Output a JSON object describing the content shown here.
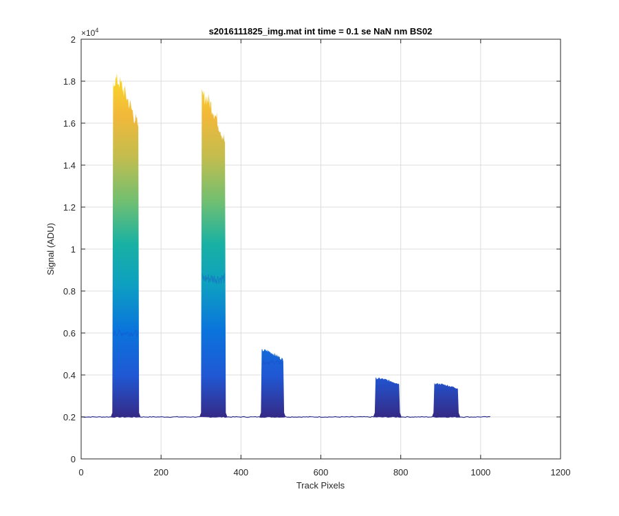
{
  "chart_data": {
    "type": "area",
    "title": "s2016111825_img.mat int time = 0.1 se  NaN nm BS02",
    "xlabel": "Track Pixels",
    "ylabel": "Signal (ADU)",
    "xlim": [
      0,
      1200
    ],
    "ylim": [
      0,
      20000
    ],
    "y_exponent_label": "×10",
    "y_exponent_power": "4",
    "xticks": [
      0,
      200,
      400,
      600,
      800,
      1000,
      1200
    ],
    "xtick_labels": [
      "0",
      "200",
      "400",
      "600",
      "800",
      "1000",
      "1200"
    ],
    "yticks": [
      0,
      2000,
      4000,
      6000,
      8000,
      10000,
      12000,
      14000,
      16000,
      18000,
      20000
    ],
    "ytick_labels": [
      "0",
      "0.2",
      "0.4",
      "0.6",
      "0.8",
      "1",
      "1.2",
      "1.4",
      "1.6",
      "1.8",
      "2"
    ],
    "grid": true,
    "colormap": "parula",
    "baseline": 2000,
    "baseline_x_range": [
      0,
      1024
    ],
    "peaks": [
      {
        "x_start": 78,
        "x_end": 145,
        "max": 18200,
        "inner_max": 6000
      },
      {
        "x_start": 300,
        "x_end": 362,
        "max": 17400,
        "inner_max": 8600
      },
      {
        "x_start": 450,
        "x_end": 508,
        "max": 5200,
        "inner_max": 4600
      },
      {
        "x_start": 735,
        "x_end": 798,
        "max": 3850,
        "inner_max": 3500
      },
      {
        "x_start": 882,
        "x_end": 945,
        "max": 3600,
        "inner_max": 3300
      }
    ],
    "colors": {
      "baseline": "#2b2f86",
      "low": "#352a87",
      "mid": "#0d9fc1",
      "high": "#f9dc24"
    }
  }
}
